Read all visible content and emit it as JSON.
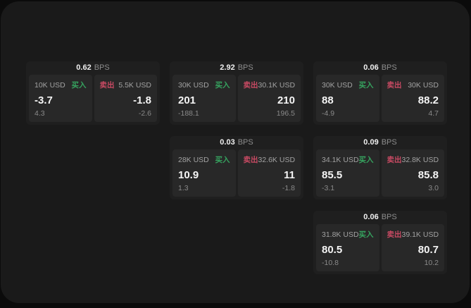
{
  "colors": {
    "page_bg": "#0b0b0b",
    "panel_bg": "#1a1a1a",
    "card_bg": "#1f1f1f",
    "pane_bg": "#282828",
    "buy_green": "#36a35f",
    "sell_red": "#c84a63",
    "value_white": "#f5f5f5",
    "muted_gray": "#8d8d8d"
  },
  "labels": {
    "bps": "BPS",
    "buy": "买入",
    "sell": "卖出"
  },
  "cards": [
    {
      "row": 1,
      "col": 1,
      "bps": "0.62",
      "buy": {
        "amount": "10K USD",
        "price": "-3.7",
        "delta": "4.3"
      },
      "sell": {
        "amount": "5.5K USD",
        "price": "-1.8",
        "delta": "-2.6"
      }
    },
    {
      "row": 1,
      "col": 2,
      "bps": "2.92",
      "buy": {
        "amount": "30K USD",
        "price": "201",
        "delta": "-188.1"
      },
      "sell": {
        "amount": "30.1K USD",
        "price": "210",
        "delta": "196.5"
      }
    },
    {
      "row": 1,
      "col": 3,
      "bps": "0.06",
      "buy": {
        "amount": "30K USD",
        "price": "88",
        "delta": "-4.9"
      },
      "sell": {
        "amount": "30K USD",
        "price": "88.2",
        "delta": "4.7"
      }
    },
    {
      "row": 2,
      "col": 2,
      "bps": "0.03",
      "buy": {
        "amount": "28K USD",
        "price": "10.9",
        "delta": "1.3"
      },
      "sell": {
        "amount": "32.6K USD",
        "price": "11",
        "delta": "-1.8"
      }
    },
    {
      "row": 2,
      "col": 3,
      "bps": "0.09",
      "buy": {
        "amount": "34.1K USD",
        "price": "85.5",
        "delta": "-3.1"
      },
      "sell": {
        "amount": "32.8K USD",
        "price": "85.8",
        "delta": "3.0"
      }
    },
    {
      "row": 3,
      "col": 3,
      "bps": "0.06",
      "buy": {
        "amount": "31.8K USD",
        "price": "80.5",
        "delta": "-10.8"
      },
      "sell": {
        "amount": "39.1K USD",
        "price": "80.7",
        "delta": "10.2"
      }
    }
  ]
}
